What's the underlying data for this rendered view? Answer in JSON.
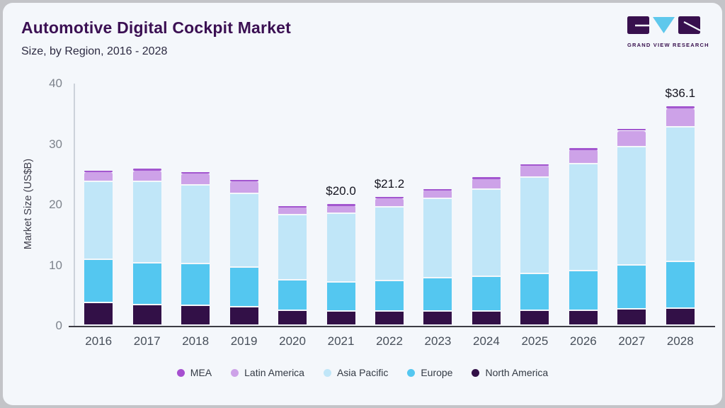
{
  "header": {
    "title": "Automotive Digital Cockpit Market",
    "subtitle": "Size, by Region, 2016 - 2028",
    "logo_text": "GRAND VIEW RESEARCH"
  },
  "colors": {
    "title_purple": "#3b1053",
    "card_background": "#f4f7fb",
    "logo_purple": "#38104e",
    "logo_cyan": "#5fc8ec"
  },
  "chart_data": {
    "type": "bar",
    "stacked": true,
    "title": "Automotive Digital Cockpit Market Size, by Region, 2016 - 2028",
    "xlabel": "",
    "ylabel": "Market Size (US$B)",
    "ylim": [
      0,
      40
    ],
    "yticks": [
      0,
      10,
      20,
      30,
      40
    ],
    "grid": false,
    "legend_position": "bottom",
    "categories": [
      "2016",
      "2017",
      "2018",
      "2019",
      "2020",
      "2021",
      "2022",
      "2023",
      "2024",
      "2025",
      "2026",
      "2027",
      "2028"
    ],
    "series": [
      {
        "name": "North America",
        "color": "#321047",
        "values": [
          3.8,
          3.4,
          3.3,
          3.0,
          2.5,
          2.3,
          2.3,
          2.3,
          2.3,
          2.4,
          2.5,
          2.7,
          2.8
        ]
      },
      {
        "name": "Europe",
        "color": "#54c7f0",
        "values": [
          7.1,
          6.9,
          6.9,
          6.6,
          5.0,
          4.8,
          5.1,
          5.5,
          5.8,
          6.1,
          6.5,
          7.2,
          7.7
        ]
      },
      {
        "name": "Asia Pacific",
        "color": "#c0e6f8",
        "values": [
          12.9,
          13.4,
          13.0,
          12.2,
          10.7,
          11.4,
          12.1,
          13.1,
          14.3,
          15.9,
          17.7,
          19.6,
          22.2
        ]
      },
      {
        "name": "Latin America",
        "color": "#cda2e8",
        "values": [
          1.6,
          1.9,
          2.0,
          2.1,
          1.4,
          1.4,
          1.5,
          1.5,
          1.9,
          2.1,
          2.4,
          2.7,
          3.2
        ]
      },
      {
        "name": "MEA",
        "color": "#a357cf",
        "values": [
          0.1,
          0.2,
          0.1,
          0.1,
          0.1,
          0.1,
          0.2,
          0.1,
          0.1,
          0.1,
          0.1,
          0.2,
          0.2
        ]
      }
    ],
    "value_labels": [
      {
        "category": "2021",
        "text": "$20.0"
      },
      {
        "category": "2022",
        "text": "$21.2"
      },
      {
        "category": "2028",
        "text": "$36.1"
      }
    ],
    "legend_order": [
      "MEA",
      "Latin America",
      "Asia Pacific",
      "Europe",
      "North America"
    ]
  }
}
